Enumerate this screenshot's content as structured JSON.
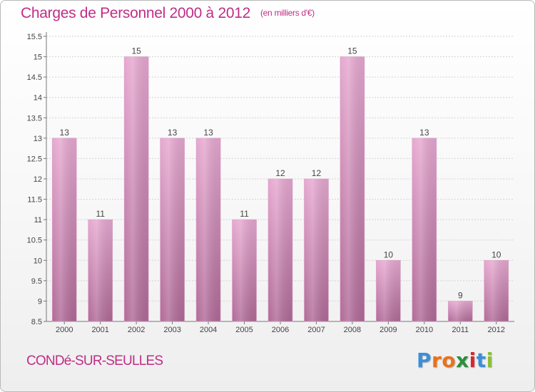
{
  "title": "Charges de Personnel 2000 à 2012",
  "subtitle": "(en milliers d'€)",
  "commune": "CONDé-SUR-SEULLES",
  "logo": {
    "text": "Proxiti",
    "letter_colors": [
      "#3b8fd6",
      "#e8731c",
      "#e8731c",
      "#2a8f3a",
      "#d9262c",
      "#3b8fd6",
      "#8bbf3a"
    ]
  },
  "colors": {
    "title": "#c02d86",
    "bar_top": "#e6a8d0",
    "bar_bottom": "#b06a97",
    "axis": "#777777",
    "grid": "#d3d3d3"
  },
  "chart_data": {
    "type": "bar",
    "categories": [
      "2000",
      "2001",
      "2002",
      "2003",
      "2004",
      "2005",
      "2006",
      "2007",
      "2008",
      "2009",
      "2010",
      "2011",
      "2012"
    ],
    "values": [
      13,
      11,
      15,
      13,
      13,
      11,
      12,
      12,
      15,
      10,
      13,
      9,
      10
    ],
    "data_labels": [
      "13",
      "11",
      "15",
      "13",
      "13",
      "11",
      "12",
      "12",
      "15",
      "10",
      "13",
      "9",
      "10"
    ],
    "y_ticks": [
      "8.5",
      "9",
      "9.5",
      "10",
      "10.5",
      "11",
      "11.5",
      "12",
      "12.5",
      "13",
      "13.5",
      "14",
      "14.5",
      "15",
      "15.5"
    ],
    "ylim": [
      8.5,
      15.5
    ],
    "grid": true,
    "title": "Charges de Personnel 2000 à 2012",
    "xlabel": "",
    "ylabel": ""
  }
}
